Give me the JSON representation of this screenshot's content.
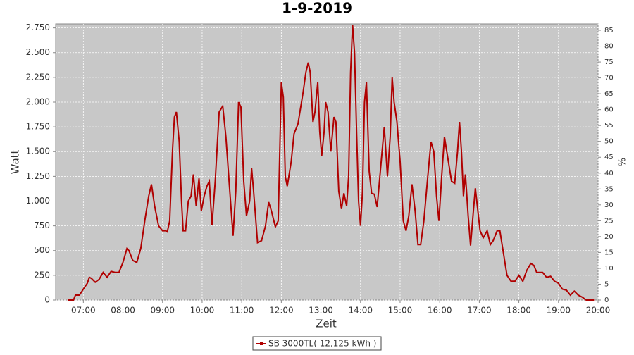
{
  "chart_data": {
    "type": "line",
    "title": "1-9-2019",
    "xlabel": "Zeit",
    "ylabel": "Watt",
    "y2label": "%",
    "x": [
      6.6,
      6.75,
      6.8,
      6.9,
      7.0,
      7.1,
      7.15,
      7.2,
      7.3,
      7.4,
      7.5,
      7.6,
      7.7,
      7.8,
      7.9,
      8.0,
      8.1,
      8.15,
      8.25,
      8.35,
      8.45,
      8.55,
      8.65,
      8.72,
      8.8,
      8.9,
      9.0,
      9.08,
      9.12,
      9.18,
      9.25,
      9.3,
      9.35,
      9.42,
      9.48,
      9.52,
      9.58,
      9.65,
      9.72,
      9.78,
      9.85,
      9.92,
      9.98,
      10.05,
      10.12,
      10.18,
      10.25,
      10.33,
      10.43,
      10.52,
      10.6,
      10.68,
      10.78,
      10.85,
      10.92,
      10.98,
      11.05,
      11.12,
      11.2,
      11.25,
      11.3,
      11.4,
      11.5,
      11.6,
      11.68,
      11.75,
      11.85,
      11.92,
      12.0,
      12.05,
      12.1,
      12.15,
      12.25,
      12.32,
      12.42,
      12.55,
      12.62,
      12.68,
      12.73,
      12.8,
      12.85,
      12.92,
      12.97,
      13.02,
      13.08,
      13.12,
      13.18,
      13.25,
      13.33,
      13.38,
      13.45,
      13.52,
      13.58,
      13.65,
      13.7,
      13.75,
      13.8,
      13.85,
      13.9,
      13.95,
      14.0,
      14.05,
      14.1,
      14.15,
      14.22,
      14.28,
      14.35,
      14.42,
      14.5,
      14.6,
      14.68,
      14.75,
      14.8,
      14.85,
      14.92,
      15.0,
      15.08,
      15.15,
      15.22,
      15.3,
      15.38,
      15.45,
      15.52,
      15.6,
      15.7,
      15.78,
      15.85,
      15.92,
      15.98,
      16.05,
      16.12,
      16.2,
      16.3,
      16.38,
      16.45,
      16.5,
      16.55,
      16.6,
      16.65,
      16.72,
      16.78,
      16.85,
      16.9,
      16.95,
      17.02,
      17.1,
      17.2,
      17.28,
      17.35,
      17.45,
      17.52,
      17.6,
      17.7,
      17.8,
      17.9,
      18.0,
      18.1,
      18.2,
      18.3,
      18.38,
      18.45,
      18.6,
      18.7,
      18.8,
      18.9,
      19.0,
      19.1,
      19.2,
      19.3,
      19.4,
      19.5,
      19.6,
      19.7,
      19.9
    ],
    "series": [
      {
        "name": "SB 3000TL( 12,125 kWh )",
        "color": "#b00000",
        "values": [
          0,
          0,
          50,
          50,
          110,
          170,
          230,
          220,
          180,
          210,
          280,
          230,
          290,
          280,
          280,
          380,
          520,
          500,
          400,
          380,
          520,
          800,
          1050,
          1170,
          950,
          750,
          700,
          700,
          690,
          800,
          1500,
          1850,
          1900,
          1600,
          1000,
          700,
          700,
          1000,
          1050,
          1270,
          950,
          1230,
          900,
          1050,
          1150,
          1200,
          760,
          1200,
          1900,
          1960,
          1650,
          1200,
          650,
          1100,
          2000,
          1950,
          1200,
          850,
          1000,
          1330,
          1100,
          580,
          600,
          750,
          990,
          900,
          740,
          800,
          2200,
          2050,
          1250,
          1150,
          1400,
          1680,
          1780,
          2100,
          2300,
          2400,
          2300,
          1800,
          1900,
          2200,
          1700,
          1460,
          1700,
          2000,
          1900,
          1500,
          1850,
          1800,
          1100,
          920,
          1080,
          950,
          1250,
          2300,
          2780,
          2500,
          1700,
          1000,
          750,
          1100,
          2000,
          2200,
          1300,
          1080,
          1070,
          940,
          1300,
          1750,
          1250,
          1650,
          2250,
          2000,
          1800,
          1400,
          800,
          700,
          850,
          1170,
          900,
          560,
          560,
          800,
          1250,
          1600,
          1500,
          1050,
          800,
          1250,
          1650,
          1450,
          1200,
          1180,
          1500,
          1800,
          1500,
          1050,
          1270,
          850,
          550,
          900,
          1130,
          950,
          700,
          630,
          700,
          560,
          600,
          700,
          700,
          500,
          250,
          190,
          190,
          250,
          190,
          300,
          370,
          350,
          280,
          280,
          230,
          240,
          190,
          170,
          110,
          100,
          50,
          90,
          50,
          30,
          0,
          0
        ]
      }
    ],
    "xlim": [
      6.3,
      20
    ],
    "xticks": [
      {
        "value": 7,
        "label": "07:00"
      },
      {
        "value": 8,
        "label": "08:00"
      },
      {
        "value": 9,
        "label": "09:00"
      },
      {
        "value": 10,
        "label": "10:00"
      },
      {
        "value": 11,
        "label": "11:00"
      },
      {
        "value": 12,
        "label": "12:00"
      },
      {
        "value": 13,
        "label": "13:00"
      },
      {
        "value": 14,
        "label": "14:00"
      },
      {
        "value": 15,
        "label": "15:00"
      },
      {
        "value": 16,
        "label": "16:00"
      },
      {
        "value": 17,
        "label": "17:00"
      },
      {
        "value": 18,
        "label": "18:00"
      },
      {
        "value": 19,
        "label": "19:00"
      },
      {
        "value": 20,
        "label": "20:00"
      }
    ],
    "ylim": [
      0,
      2790
    ],
    "yticks": [
      0,
      250,
      500,
      750,
      {
        "value": 1000,
        "label": "1.000"
      },
      {
        "value": 1250,
        "label": "1.250"
      },
      {
        "value": 1500,
        "label": "1.500"
      },
      {
        "value": 1750,
        "label": "1.750"
      },
      {
        "value": 2000,
        "label": "2.000"
      },
      {
        "value": 2250,
        "label": "2.250"
      },
      {
        "value": 2500,
        "label": "2.500"
      },
      {
        "value": 2750,
        "label": "2.750"
      }
    ],
    "y2lim": [
      0,
      87
    ],
    "y2ticks": [
      0,
      5,
      10,
      15,
      20,
      25,
      30,
      35,
      40,
      45,
      50,
      55,
      60,
      65,
      70,
      75,
      80,
      85
    ],
    "grid": true,
    "legend": "bottom"
  }
}
